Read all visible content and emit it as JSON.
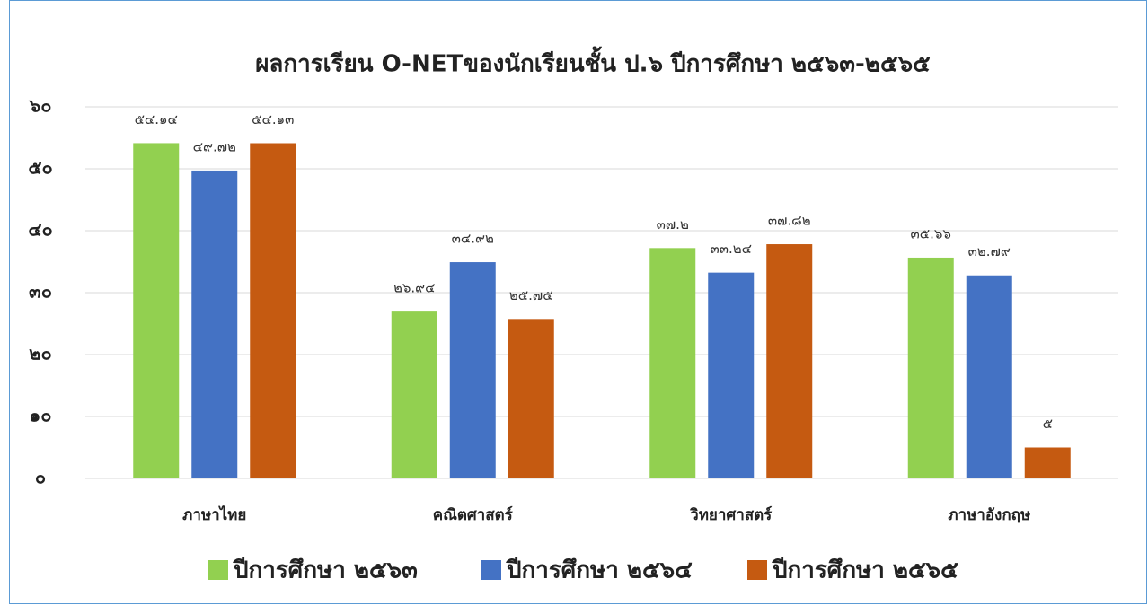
{
  "chart_data": {
    "type": "bar",
    "title": "ผลการเรียน O-NETของนักเรียนชั้น ป.๖ ปีการศึกษา ๒๕๖๓-๒๕๖๕",
    "categories": [
      "ภาษาไทย",
      "คณิตศาสตร์",
      "วิทยาศาสตร์",
      "ภาษาอังกฤษ"
    ],
    "series": [
      {
        "name": "ปีการศึกษา ๒๕๖๓",
        "color": "#92d050",
        "values": [
          54.14,
          26.94,
          37.2,
          35.66
        ],
        "value_labels": [
          "๕๔.๑๔",
          "๒๖.๙๔",
          "๓๗.๒",
          "๓๕.๖๖"
        ]
      },
      {
        "name": "ปีการศึกษา ๒๕๖๔",
        "color": "#4472c4",
        "values": [
          49.72,
          34.92,
          33.24,
          32.79
        ],
        "value_labels": [
          "๔๙.๗๒",
          "๓๔.๙๒",
          "๓๓.๒๔",
          "๓๒.๗๙"
        ]
      },
      {
        "name": "ปีการศึกษา ๒๕๖๕",
        "color": "#c55a11",
        "values": [
          54.13,
          25.75,
          37.82,
          5
        ],
        "value_labels": [
          "๕๔.๑๓",
          "๒๕.๗๕",
          "๓๗.๘๒",
          "๕"
        ]
      }
    ],
    "ylim": [
      0,
      60
    ],
    "yticks": [
      {
        "value": 0,
        "label": "๐"
      },
      {
        "value": 10,
        "label": "๑๐"
      },
      {
        "value": 20,
        "label": "๒๐"
      },
      {
        "value": 30,
        "label": "๓๐"
      },
      {
        "value": 40,
        "label": "๔๐"
      },
      {
        "value": 50,
        "label": "๕๐"
      },
      {
        "value": 60,
        "label": "๖๐"
      }
    ],
    "grid": true
  }
}
